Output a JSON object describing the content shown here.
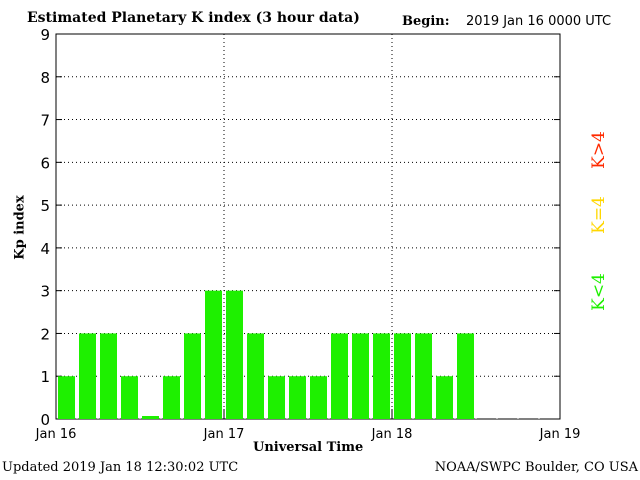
{
  "header": {
    "title": "Estimated Planetary K index (3 hour data)",
    "begin_label": "Begin:",
    "begin_value": "2019 Jan 16 0000 UTC"
  },
  "footer": {
    "updated": "Updated 2019 Jan 18 12:30:02 UTC",
    "credit": "NOAA/SWPC Boulder, CO USA"
  },
  "legend": [
    {
      "label": "K<4",
      "color": "#1ef000"
    },
    {
      "label": "K=4",
      "color": "#ffd700"
    },
    {
      "label": "K>4",
      "color": "#ff2a00"
    }
  ],
  "chart_data": {
    "type": "bar",
    "title": "Estimated Planetary K index (3 hour data)",
    "xlabel": "Universal Time",
    "ylabel": "Kp index",
    "ylim": [
      0,
      9
    ],
    "yticks": [
      0,
      1,
      2,
      3,
      4,
      5,
      6,
      7,
      8,
      9
    ],
    "xticks": [
      "Jan 16",
      "Jan 17",
      "Jan 18",
      "Jan 19"
    ],
    "bars_per_day": 8,
    "grid": true,
    "values": [
      1,
      2,
      2,
      1,
      0,
      1,
      2,
      3,
      3,
      2,
      1,
      1,
      1,
      2,
      2,
      2,
      2,
      2,
      1,
      2
    ],
    "bar_color": "#1ef000"
  }
}
